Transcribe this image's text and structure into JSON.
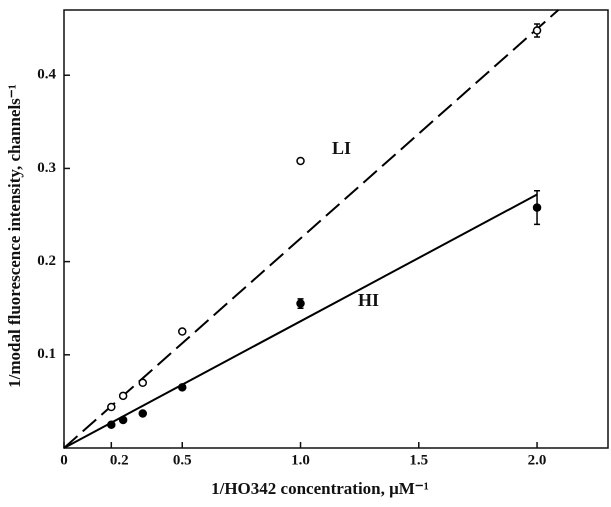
{
  "chart_data": {
    "type": "scatter",
    "x_label": "1/HO342 concentration, μM⁻¹",
    "y_label": "1/modal fluorescence intensity, channels⁻¹",
    "xlim": [
      0,
      2.3
    ],
    "ylim": [
      0,
      0.47
    ],
    "xticks": [
      0,
      0.2,
      0.5,
      {
        "value": 1,
        "label": "1.0"
      },
      1.5,
      {
        "value": 2,
        "label": "2.0"
      }
    ],
    "yticks": [
      0.1,
      0.2,
      0.3,
      0.4
    ],
    "series": [
      {
        "name": "LI",
        "marker": "open",
        "color": "#000000",
        "x": [
          0.2,
          0.25,
          0.333,
          0.5,
          1,
          2
        ],
        "values": [
          0.044,
          0.056,
          0.07,
          0.125,
          0.308,
          0.448
        ],
        "errors": [
          null,
          null,
          null,
          null,
          null,
          0.007
        ],
        "fit": {
          "dash": true,
          "x": [
            0,
            2.09
          ],
          "values": [
            0,
            0.47
          ]
        }
      },
      {
        "name": "HI",
        "marker": "filled",
        "color": "#000000",
        "x": [
          0.2,
          0.25,
          0.333,
          0.5,
          1,
          2
        ],
        "values": [
          0.025,
          0.03,
          0.037,
          0.065,
          0.155,
          0.258
        ],
        "errors": [
          null,
          null,
          null,
          null,
          0.005,
          0.018
        ],
        "fit": {
          "dash": false,
          "x": [
            0,
            2
          ],
          "values": [
            0,
            0.272
          ]
        }
      }
    ]
  }
}
